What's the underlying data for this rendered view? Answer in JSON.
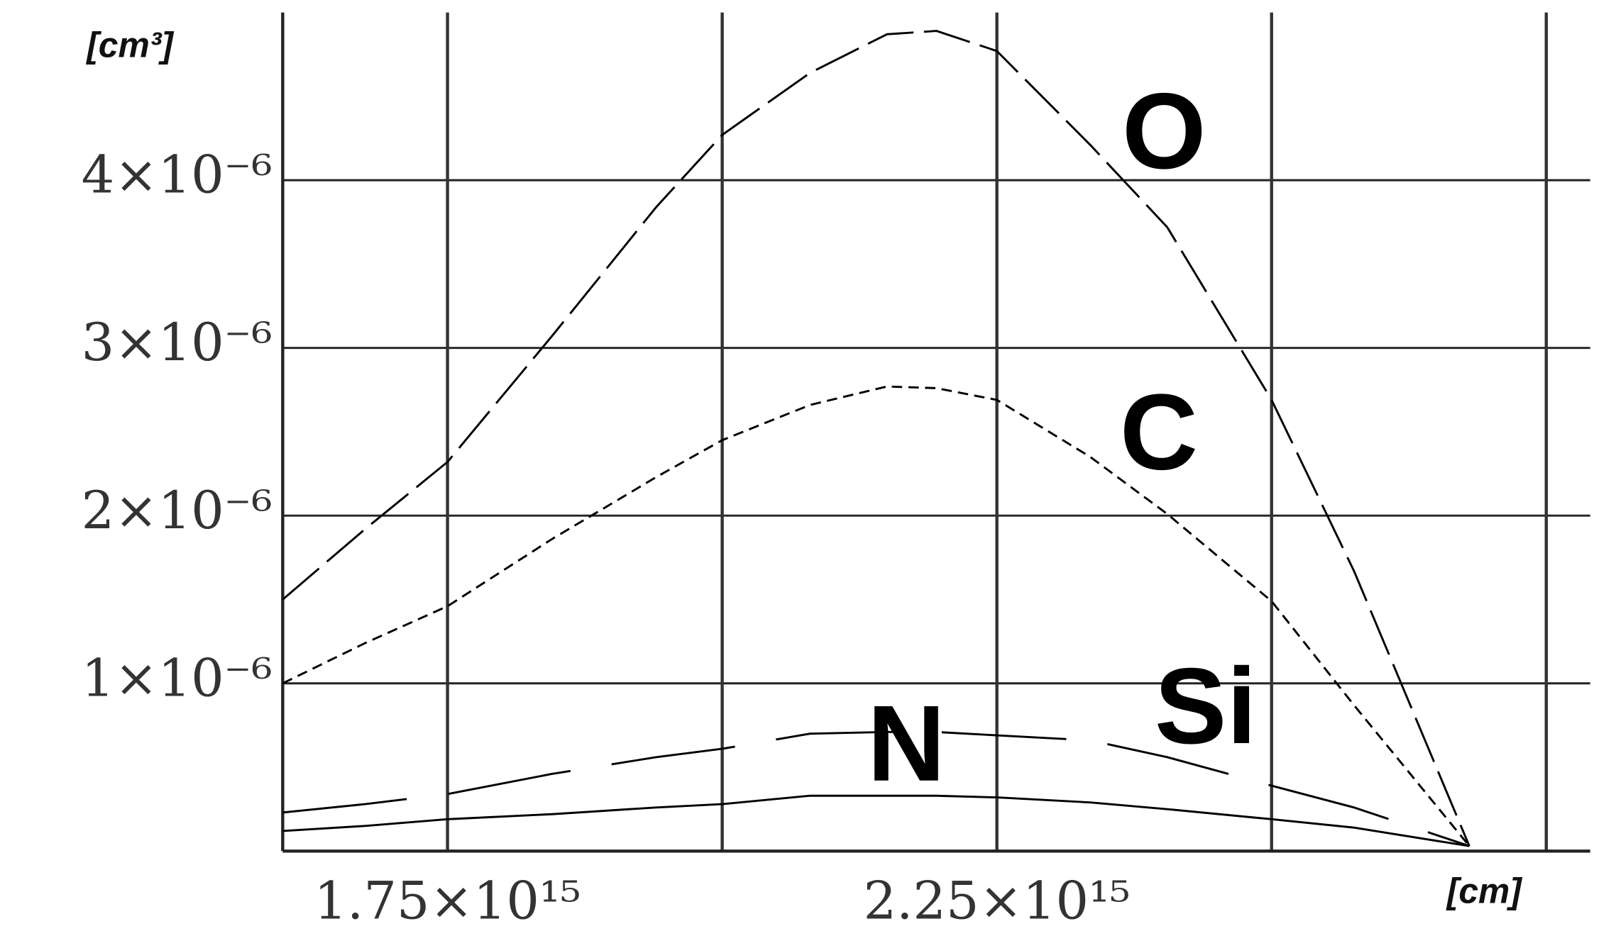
{
  "chart_data": {
    "type": "line",
    "y_label": "[cm³]",
    "x_label": "[cm]",
    "x": [
      1600000000000000.0,
      1675000000000000.0,
      1750000000000000.0,
      1845000000000000.0,
      1940000000000000.0,
      2000000000000000.0,
      2080000000000000.0,
      2150000000000000.0,
      2195000000000000.0,
      2250000000000000.0,
      2335000000000000.0,
      2405000000000000.0,
      2500000000000000.0,
      2575000000000000.0,
      2680000000000000.0
    ],
    "series": [
      {
        "name": "O",
        "color": "#000000",
        "dash": "long",
        "values": [
          1.5e-06,
          1.92e-06,
          2.32e-06,
          3.07e-06,
          3.84e-06,
          4.27e-06,
          4.64e-06,
          4.87e-06,
          4.89e-06,
          4.77e-06,
          4.21e-06,
          3.72e-06,
          2.69e-06,
          1.67e-06,
          3e-08
        ]
      },
      {
        "name": "C",
        "color": "#000000",
        "dash": "short",
        "values": [
          1e-06,
          1.24e-06,
          1.46e-06,
          1.86e-06,
          2.23e-06,
          2.45e-06,
          2.66e-06,
          2.77e-06,
          2.76e-06,
          2.69e-06,
          2.35e-06,
          2.01e-06,
          1.49e-06,
          8.7e-07,
          3e-08
        ]
      },
      {
        "name": "Si",
        "color": "#000000",
        "dash": "solid",
        "values": [
          1.2e-07,
          1.5e-07,
          1.9e-07,
          2.2e-07,
          2.6e-07,
          2.8e-07,
          3.3e-07,
          3.3e-07,
          3.3e-07,
          3.2e-07,
          2.9e-07,
          2.5e-07,
          1.9e-07,
          1.4e-07,
          3e-08
        ]
      },
      {
        "name": "N",
        "color": "#000000",
        "dash": "gapped",
        "values": [
          2.3e-07,
          2.8e-07,
          3.4e-07,
          4.6e-07,
          5.6e-07,
          6.1e-07,
          7e-07,
          7.1e-07,
          7.1e-07,
          6.9e-07,
          6.6e-07,
          5.6e-07,
          3.9e-07,
          2.6e-07,
          3e-08
        ]
      }
    ],
    "xlim": [
      1600000000000000.0,
      2790000000000000.0
    ],
    "xticks": [
      {
        "value": 1750000000000000.0,
        "label": "1.75×10¹⁵"
      },
      {
        "value": 2250000000000000.0,
        "label": "2.25×10¹⁵"
      }
    ],
    "xgrid": [
      1750000000000000.0,
      2000000000000000.0,
      2250000000000000.0,
      2500000000000000.0,
      2750000000000000.0
    ],
    "ylim": [
      0,
      5e-06
    ],
    "yticks": [
      {
        "value": 1e-06,
        "label": "1×10⁻⁶"
      },
      {
        "value": 2e-06,
        "label": "2×10⁻⁶"
      },
      {
        "value": 3e-06,
        "label": "3×10⁻⁶"
      },
      {
        "value": 4e-06,
        "label": "4×10⁻⁶"
      }
    ],
    "grid": true
  }
}
